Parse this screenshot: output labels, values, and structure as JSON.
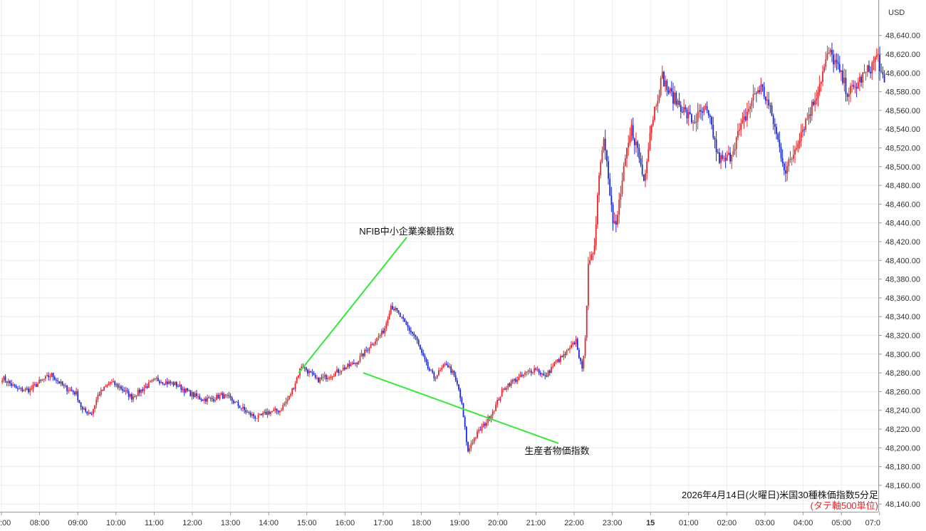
{
  "chart_data": {
    "type": "candlestick",
    "currency_label": "USD",
    "caption": "2026年4月14日(火曜日)米国30種株価指数5分足",
    "caption_note": "(タテ軸500単位)",
    "ylim": [
      48130,
      48650
    ],
    "y_ticks": [
      "48,140.00",
      "48,160.00",
      "48,180.00",
      "48,200.00",
      "48,220.00",
      "48,240.00",
      "48,260.00",
      "48,280.00",
      "48,300.00",
      "48,320.00",
      "48,340.00",
      "48,360.00",
      "48,380.00",
      "48,400.00",
      "48,420.00",
      "48,440.00",
      "48,460.00",
      "48,480.00",
      "48,500.00",
      "48,520.00",
      "48,540.00",
      "48,560.00",
      "48,580.00",
      "48,600.00",
      "48,620.00",
      "48,640.00"
    ],
    "x_ticks": [
      ":00",
      "08:00",
      "09:00",
      "10:00",
      "11:00",
      "12:00",
      "13:00",
      "14:00",
      "15:00",
      "16:00",
      "17:00",
      "18:00",
      "19:00",
      "20:00",
      "21:00",
      "22:00",
      "23:00",
      "15",
      "01:00",
      "02:00",
      "03:00",
      "04:00",
      "05:00",
      "07:0"
    ],
    "bold_tick": "15",
    "up_color": "#e8262a",
    "down_color": "#1a2bd6",
    "annotation_color": "#39e639",
    "annotations": [
      {
        "label": "NFIB中小企業楽観指数",
        "time_index": 192,
        "price": 48280
      },
      {
        "label": "生産者物価指数",
        "time_index": 234,
        "price": 48280
      }
    ],
    "anchors": [
      [
        0,
        48275
      ],
      [
        10,
        48262
      ],
      [
        18,
        48262
      ],
      [
        24,
        48270
      ],
      [
        32,
        48278
      ],
      [
        40,
        48265
      ],
      [
        48,
        48258
      ],
      [
        52,
        48240
      ],
      [
        58,
        48237
      ],
      [
        62,
        48256
      ],
      [
        70,
        48270
      ],
      [
        76,
        48265
      ],
      [
        84,
        48254
      ],
      [
        92,
        48264
      ],
      [
        100,
        48273
      ],
      [
        106,
        48270
      ],
      [
        112,
        48268
      ],
      [
        118,
        48262
      ],
      [
        124,
        48256
      ],
      [
        130,
        48252
      ],
      [
        136,
        48252
      ],
      [
        142,
        48256
      ],
      [
        148,
        48252
      ],
      [
        154,
        48244
      ],
      [
        160,
        48236
      ],
      [
        166,
        48232
      ],
      [
        172,
        48238
      ],
      [
        180,
        48240
      ],
      [
        186,
        48254
      ],
      [
        190,
        48270
      ],
      [
        194,
        48288
      ],
      [
        198,
        48282
      ],
      [
        204,
        48272
      ],
      [
        210,
        48276
      ],
      [
        216,
        48280
      ],
      [
        220,
        48284
      ],
      [
        226,
        48288
      ],
      [
        230,
        48292
      ],
      [
        234,
        48300
      ],
      [
        238,
        48308
      ],
      [
        242,
        48315
      ],
      [
        246,
        48322
      ],
      [
        248,
        48328
      ],
      [
        250,
        48340
      ],
      [
        252,
        48352
      ],
      [
        256,
        48345
      ],
      [
        262,
        48330
      ],
      [
        268,
        48318
      ],
      [
        272,
        48300
      ],
      [
        276,
        48285
      ],
      [
        280,
        48275
      ],
      [
        284,
        48282
      ],
      [
        288,
        48290
      ],
      [
        292,
        48280
      ],
      [
        296,
        48262
      ],
      [
        298,
        48245
      ],
      [
        300,
        48220
      ],
      [
        302,
        48195
      ],
      [
        304,
        48205
      ],
      [
        308,
        48215
      ],
      [
        314,
        48228
      ],
      [
        320,
        48245
      ],
      [
        324,
        48260
      ],
      [
        328,
        48268
      ],
      [
        332,
        48272
      ],
      [
        336,
        48275
      ],
      [
        340,
        48280
      ],
      [
        346,
        48285
      ],
      [
        352,
        48275
      ],
      [
        358,
        48290
      ],
      [
        364,
        48298
      ],
      [
        368,
        48305
      ],
      [
        372,
        48315
      ],
      [
        374,
        48298
      ],
      [
        376,
        48282
      ],
      [
        378,
        48320
      ],
      [
        380,
        48390
      ],
      [
        382,
        48400
      ],
      [
        384,
        48420
      ],
      [
        386,
        48470
      ],
      [
        388,
        48510
      ],
      [
        390,
        48530
      ],
      [
        392,
        48512
      ],
      [
        394,
        48475
      ],
      [
        396,
        48440
      ],
      [
        398,
        48435
      ],
      [
        400,
        48462
      ],
      [
        404,
        48505
      ],
      [
        408,
        48540
      ],
      [
        412,
        48518
      ],
      [
        416,
        48485
      ],
      [
        420,
        48538
      ],
      [
        424,
        48570
      ],
      [
        428,
        48596
      ],
      [
        432,
        48580
      ],
      [
        436,
        48572
      ],
      [
        440,
        48565
      ],
      [
        444,
        48555
      ],
      [
        448,
        48548
      ],
      [
        452,
        48555
      ],
      [
        456,
        48560
      ],
      [
        460,
        48542
      ],
      [
        464,
        48510
      ],
      [
        468,
        48505
      ],
      [
        472,
        48512
      ],
      [
        476,
        48530
      ],
      [
        480,
        48545
      ],
      [
        484,
        48562
      ],
      [
        488,
        48578
      ],
      [
        492,
        48585
      ],
      [
        496,
        48570
      ],
      [
        500,
        48548
      ],
      [
        504,
        48520
      ],
      [
        508,
        48495
      ],
      [
        512,
        48510
      ],
      [
        516,
        48530
      ],
      [
        520,
        48545
      ],
      [
        524,
        48560
      ],
      [
        528,
        48578
      ],
      [
        532,
        48600
      ],
      [
        536,
        48622
      ],
      [
        540,
        48612
      ],
      [
        544,
        48596
      ],
      [
        548,
        48580
      ],
      [
        552,
        48582
      ],
      [
        556,
        48592
      ],
      [
        560,
        48600
      ],
      [
        564,
        48608
      ],
      [
        566,
        48615
      ],
      [
        568,
        48618
      ],
      [
        570,
        48598
      ],
      [
        572,
        48585
      ]
    ]
  }
}
